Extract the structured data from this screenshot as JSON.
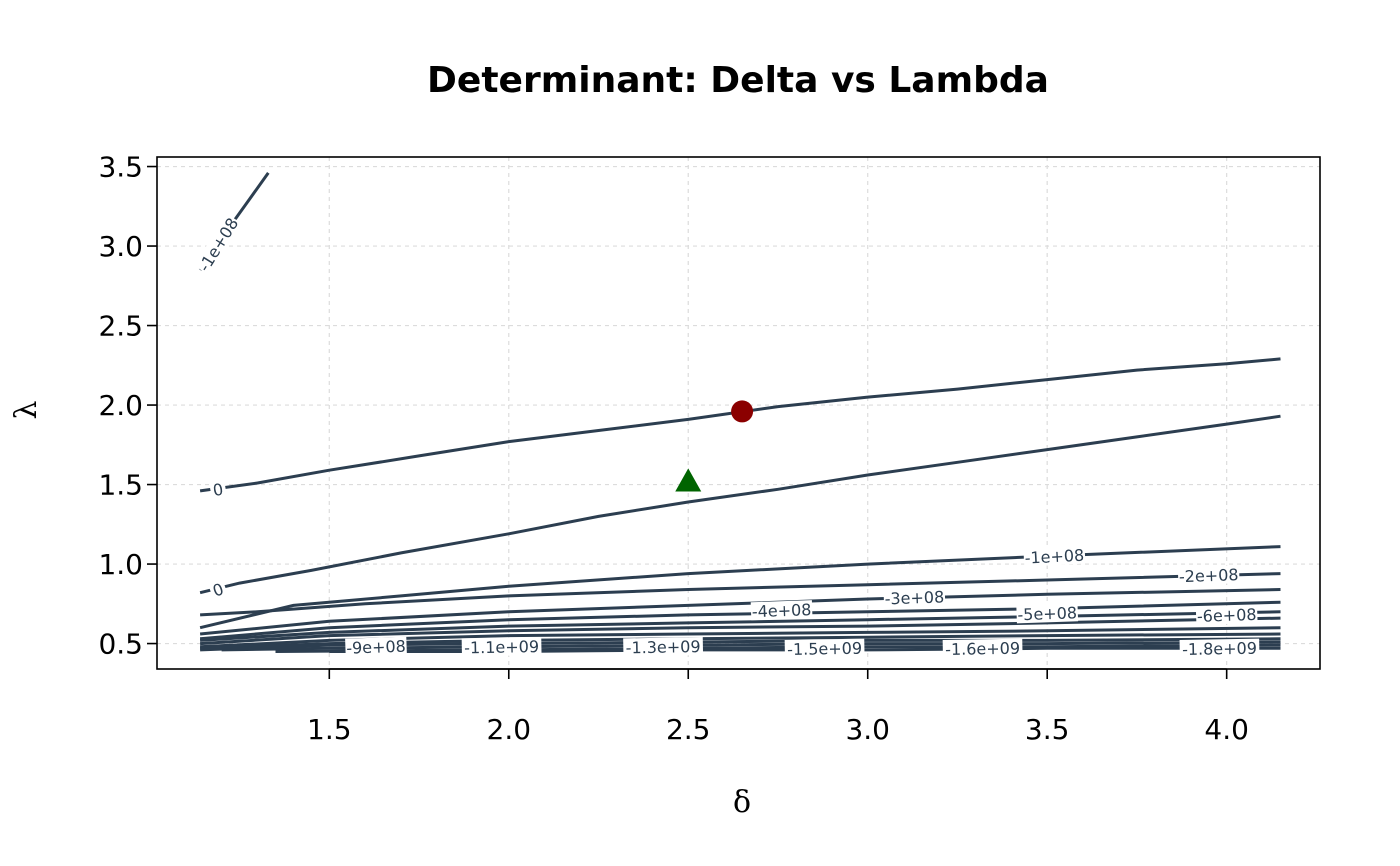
{
  "chart_data": {
    "type": "contour",
    "title": "Determinant: Delta vs Lambda",
    "xlabel": "δ",
    "ylabel": "λ",
    "xlim": [
      1.02,
      4.26
    ],
    "ylim": [
      0.34,
      3.56
    ],
    "x_ticks": [
      "1.5",
      "2.0",
      "2.5",
      "3.0",
      "3.5",
      "4.0"
    ],
    "x_tick_values": [
      1.5,
      2.0,
      2.5,
      3.0,
      3.5,
      4.0
    ],
    "y_ticks": [
      "0.5",
      "1.0",
      "1.5",
      "2.0",
      "2.5",
      "3.0",
      "3.5"
    ],
    "y_tick_values": [
      0.5,
      1.0,
      1.5,
      2.0,
      2.5,
      3.0,
      3.5
    ],
    "grid": true,
    "line_color": "#2c3e50",
    "contours": [
      {
        "level": "-1e+08",
        "points": [
          [
            1.14,
            2.85
          ],
          [
            1.2,
            3.05
          ],
          [
            1.27,
            3.27
          ],
          [
            1.33,
            3.46
          ]
        ],
        "labels": [
          {
            "text": "-1e+08",
            "x": 1.19,
            "y": 3.01,
            "angle": -58
          }
        ]
      },
      {
        "level": "0",
        "points": [
          [
            1.14,
            1.46
          ],
          [
            1.3,
            1.51
          ],
          [
            1.5,
            1.59
          ],
          [
            1.75,
            1.68
          ],
          [
            2.0,
            1.77
          ],
          [
            2.25,
            1.84
          ],
          [
            2.5,
            1.91
          ],
          [
            2.75,
            1.99
          ],
          [
            3.0,
            2.05
          ],
          [
            3.25,
            2.1
          ],
          [
            3.5,
            2.16
          ],
          [
            3.75,
            2.22
          ],
          [
            4.0,
            2.26
          ],
          [
            4.15,
            2.29
          ]
        ],
        "labels": [
          {
            "text": "0",
            "x": 1.19,
            "y": 1.47,
            "angle": -10
          }
        ]
      },
      {
        "level": "0",
        "points": [
          [
            1.14,
            0.82
          ],
          [
            1.25,
            0.88
          ],
          [
            1.45,
            0.96
          ],
          [
            1.7,
            1.07
          ],
          [
            2.0,
            1.19
          ],
          [
            2.25,
            1.3
          ],
          [
            2.5,
            1.39
          ],
          [
            2.75,
            1.47
          ],
          [
            3.0,
            1.56
          ],
          [
            3.25,
            1.64
          ],
          [
            3.5,
            1.72
          ],
          [
            3.75,
            1.8
          ],
          [
            4.0,
            1.88
          ],
          [
            4.15,
            1.93
          ]
        ],
        "labels": [
          {
            "text": "0",
            "x": 1.19,
            "y": 0.84,
            "angle": -20
          }
        ]
      },
      {
        "level": "-1e+08",
        "points": [
          [
            1.14,
            0.6
          ],
          [
            1.4,
            0.74
          ],
          [
            1.7,
            0.8
          ],
          [
            2.0,
            0.86
          ],
          [
            2.5,
            0.94
          ],
          [
            3.0,
            1.0
          ],
          [
            3.5,
            1.05
          ],
          [
            4.15,
            1.11
          ]
        ],
        "labels": [
          {
            "text": "-1e+08",
            "x": 3.52,
            "y": 1.05,
            "angle": -3
          }
        ]
      },
      {
        "level": "-2e+08",
        "points": [
          [
            1.14,
            0.68
          ],
          [
            1.3,
            0.7
          ],
          [
            1.6,
            0.75
          ],
          [
            2.0,
            0.8
          ],
          [
            2.5,
            0.84
          ],
          [
            3.0,
            0.87
          ],
          [
            3.5,
            0.9
          ],
          [
            4.15,
            0.94
          ]
        ],
        "labels": [
          {
            "text": "-2e+08",
            "x": 3.95,
            "y": 0.93,
            "angle": -2
          }
        ]
      },
      {
        "level": "-3e+08",
        "points": [
          [
            1.14,
            0.56
          ],
          [
            1.5,
            0.64
          ],
          [
            2.0,
            0.7
          ],
          [
            2.5,
            0.74
          ],
          [
            3.0,
            0.78
          ],
          [
            3.5,
            0.81
          ],
          [
            4.15,
            0.84
          ]
        ],
        "labels": [
          {
            "text": "-3e+08",
            "x": 3.13,
            "y": 0.79,
            "angle": -2
          }
        ]
      },
      {
        "level": "-4e+08",
        "points": [
          [
            1.14,
            0.53
          ],
          [
            1.5,
            0.6
          ],
          [
            2.0,
            0.65
          ],
          [
            2.5,
            0.68
          ],
          [
            3.0,
            0.7
          ],
          [
            3.5,
            0.72
          ],
          [
            4.15,
            0.76
          ]
        ],
        "labels": [
          {
            "text": "-4e+08",
            "x": 2.76,
            "y": 0.71,
            "angle": -2
          }
        ]
      },
      {
        "level": "-5e+08",
        "points": [
          [
            1.14,
            0.52
          ],
          [
            1.5,
            0.57
          ],
          [
            2.0,
            0.61
          ],
          [
            2.5,
            0.63
          ],
          [
            3.0,
            0.65
          ],
          [
            3.5,
            0.67
          ],
          [
            4.15,
            0.7
          ]
        ],
        "labels": [
          {
            "text": "-5e+08",
            "x": 3.5,
            "y": 0.69,
            "angle": -2
          }
        ]
      },
      {
        "level": "-6e+08",
        "points": [
          [
            1.14,
            0.5
          ],
          [
            1.5,
            0.55
          ],
          [
            2.0,
            0.58
          ],
          [
            2.5,
            0.6
          ],
          [
            3.0,
            0.61
          ],
          [
            3.5,
            0.63
          ],
          [
            4.15,
            0.66
          ]
        ],
        "labels": [
          {
            "text": "-6e+08",
            "x": 4.0,
            "y": 0.68,
            "angle": -2
          }
        ]
      },
      {
        "level": "-9e+08",
        "points": [
          [
            1.14,
            0.48
          ],
          [
            1.5,
            0.52
          ],
          [
            2.0,
            0.55
          ],
          [
            2.5,
            0.56
          ],
          [
            3.0,
            0.57
          ],
          [
            3.5,
            0.58
          ],
          [
            4.15,
            0.6
          ]
        ],
        "labels": [
          {
            "text": "-9e+08",
            "x": 1.63,
            "y": 0.48,
            "angle": -2
          }
        ]
      },
      {
        "level": "-1.1e+09",
        "points": [
          [
            1.14,
            0.47
          ],
          [
            1.5,
            0.5
          ],
          [
            2.0,
            0.52
          ],
          [
            2.5,
            0.53
          ],
          [
            3.0,
            0.54
          ],
          [
            3.5,
            0.55
          ],
          [
            4.15,
            0.56
          ]
        ],
        "labels": [
          {
            "text": "-1.1e+09",
            "x": 1.98,
            "y": 0.48,
            "angle": -1
          }
        ]
      },
      {
        "level": "-1.3e+09",
        "points": [
          [
            1.14,
            0.46
          ],
          [
            1.5,
            0.49
          ],
          [
            2.0,
            0.5
          ],
          [
            2.5,
            0.51
          ],
          [
            3.0,
            0.52
          ],
          [
            3.5,
            0.52
          ],
          [
            4.15,
            0.53
          ]
        ],
        "labels": [
          {
            "text": "-1.3e+09",
            "x": 2.43,
            "y": 0.48,
            "angle": -1
          }
        ]
      },
      {
        "level": "-1.5e+09",
        "points": [
          [
            1.2,
            0.46
          ],
          [
            1.5,
            0.47
          ],
          [
            2.0,
            0.48
          ],
          [
            2.5,
            0.49
          ],
          [
            3.0,
            0.5
          ],
          [
            3.5,
            0.5
          ],
          [
            4.15,
            0.51
          ]
        ],
        "labels": [
          {
            "text": "-1.5e+09",
            "x": 2.88,
            "y": 0.47,
            "angle": -1
          }
        ]
      },
      {
        "level": "-1.6e+09",
        "points": [
          [
            1.35,
            0.45
          ],
          [
            2.0,
            0.46
          ],
          [
            2.5,
            0.47
          ],
          [
            3.0,
            0.48
          ],
          [
            3.5,
            0.48
          ],
          [
            4.15,
            0.49
          ]
        ],
        "labels": [
          {
            "text": "-1.6e+09",
            "x": 3.32,
            "y": 0.47,
            "angle": -1
          }
        ]
      },
      {
        "level": "-1.8e+09",
        "points": [
          [
            1.5,
            0.45
          ],
          [
            2.0,
            0.45
          ],
          [
            2.5,
            0.46
          ],
          [
            3.0,
            0.46
          ],
          [
            3.5,
            0.47
          ],
          [
            4.15,
            0.47
          ]
        ],
        "labels": [
          {
            "text": "-1.8e+09",
            "x": 3.98,
            "y": 0.47,
            "angle": -1
          }
        ]
      }
    ],
    "markers": [
      {
        "shape": "circle",
        "x": 2.65,
        "y": 1.96,
        "color": "#8b0000"
      },
      {
        "shape": "triangle",
        "x": 2.5,
        "y": 1.52,
        "color": "#006400"
      }
    ]
  }
}
